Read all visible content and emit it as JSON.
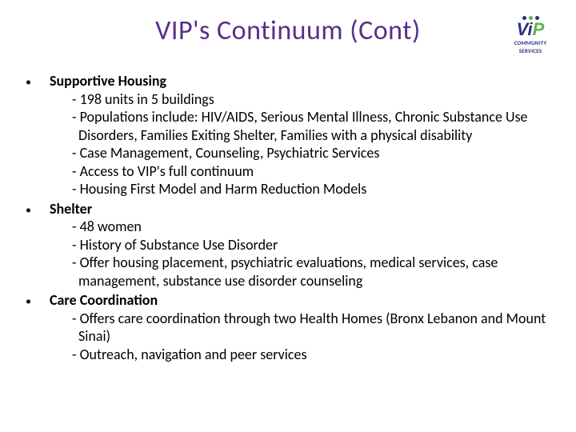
{
  "title": "VIP's Continuum (Cont)",
  "logo": {
    "v": "V",
    "i": "i",
    "p": "P",
    "sub1": "COMMUNITY",
    "sub2": "SERVICES",
    "dot_colors": [
      "#2c2e85",
      "#5fb54a",
      "#2c2e85"
    ]
  },
  "colors": {
    "title_color": "#5a2e8a",
    "text_color": "#000000",
    "background": "#ffffff"
  },
  "typography": {
    "title_fontsize": 34,
    "body_fontsize": 18,
    "body_line_height": 1.25
  },
  "sections": [
    {
      "title": "Supportive Housing",
      "items": [
        "- 198 units in 5 buildings",
        "- Populations include: HIV/AIDS, Serious Mental Illness, Chronic Substance Use Disorders, Families Exiting Shelter, Families with a physical disability",
        "- Case Management, Counseling, Psychiatric Services",
        "- Access to VIP's full continuum",
        "-    Housing First Model and Harm Reduction Models"
      ]
    },
    {
      "title": "Shelter",
      "items": [
        "- 48 women",
        "- History of Substance Use Disorder",
        "- Offer housing placement, psychiatric evaluations, medical services, case management, substance use disorder counseling"
      ]
    },
    {
      "title": "Care Coordination",
      "items": [
        "- Offers care coordination through two Health Homes (Bronx Lebanon and Mount Sinai)",
        "- Outreach, navigation and peer services"
      ]
    }
  ]
}
